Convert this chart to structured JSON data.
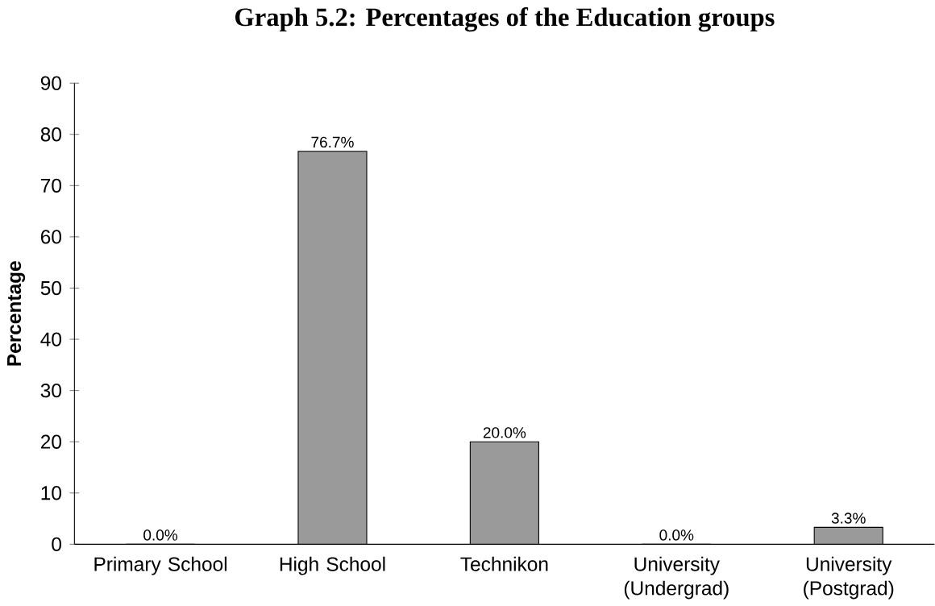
{
  "chart_data": {
    "type": "bar",
    "title": "Graph 5.2: Percentages of the Education groups",
    "ylabel": "Percentage",
    "categories": [
      "Primary School",
      "High School",
      "Technikon",
      "University (Undergrad)",
      "University (Postgrad)"
    ],
    "values": [
      0.0,
      76.7,
      20.0,
      0.0,
      3.3
    ],
    "value_labels": [
      "0.0%",
      "76.7%",
      "20.0%",
      "0.0%",
      "3.3%"
    ],
    "color": "#9a9a9a",
    "ylim": [
      0,
      90
    ],
    "yticks": [
      0,
      10,
      20,
      30,
      40,
      50,
      60,
      70,
      80,
      90
    ]
  }
}
